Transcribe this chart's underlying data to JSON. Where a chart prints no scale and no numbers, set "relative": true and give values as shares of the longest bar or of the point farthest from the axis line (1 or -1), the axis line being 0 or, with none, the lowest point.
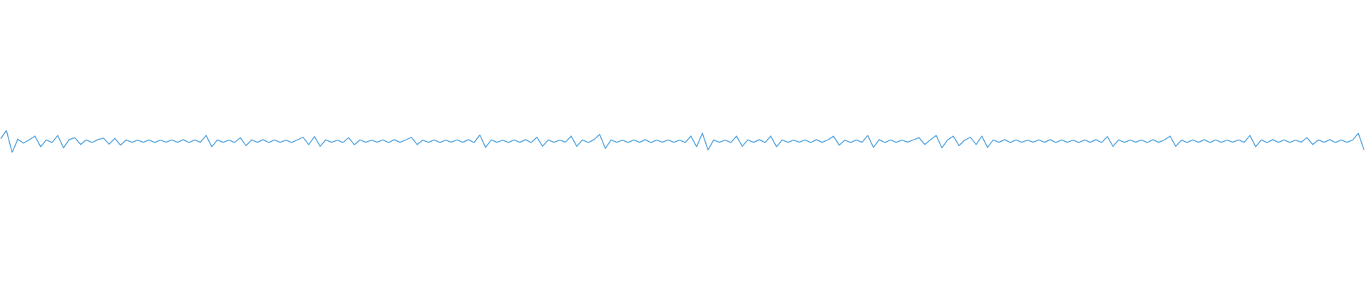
{
  "chart_data": {
    "type": "line",
    "relative": true,
    "categories": [
      null,
      null,
      null,
      null,
      null,
      null,
      null,
      null,
      null,
      null,
      null,
      null,
      null,
      null,
      null,
      null,
      null,
      null,
      null,
      null,
      null,
      null,
      null,
      null,
      null,
      null,
      null,
      null,
      null,
      null,
      null,
      null,
      null,
      null,
      null,
      null,
      null,
      null,
      null,
      null,
      null,
      null,
      null,
      null,
      null,
      null,
      null,
      null,
      null,
      null,
      null,
      null,
      null,
      null,
      null,
      null,
      null,
      null,
      null,
      null,
      null,
      null,
      null,
      null,
      null,
      null,
      null,
      null,
      null,
      null,
      null,
      null,
      null,
      null,
      null,
      null,
      null,
      null,
      null,
      null,
      null,
      null,
      null,
      null,
      null,
      null,
      null,
      null,
      null,
      null,
      null,
      null,
      null,
      null,
      null,
      null,
      null,
      null,
      null,
      null,
      null,
      null,
      null,
      null,
      null,
      null,
      null,
      null,
      null,
      null,
      null,
      null,
      null,
      null,
      null,
      null,
      null,
      null,
      null,
      null,
      null,
      null,
      null,
      null,
      null,
      null,
      null,
      null,
      null,
      null,
      null,
      null,
      null,
      null,
      null,
      null,
      null,
      null,
      null,
      null,
      null,
      null,
      null,
      null,
      null,
      null,
      null,
      null,
      null,
      null,
      null,
      null,
      null,
      null,
      null,
      null,
      null,
      null,
      null,
      null,
      null,
      null,
      null,
      null,
      null,
      null,
      null,
      null,
      null,
      null,
      null,
      null,
      null,
      null,
      null,
      null,
      null,
      null,
      null,
      null,
      null,
      null,
      null,
      null,
      null,
      null,
      null,
      null,
      null,
      null,
      null,
      null,
      null,
      null,
      null,
      null,
      null,
      null,
      null,
      null,
      null,
      null,
      null,
      null,
      null,
      null,
      null,
      null,
      null,
      null,
      null,
      null,
      null,
      null,
      null,
      null,
      null,
      null,
      null,
      null,
      null,
      null,
      null,
      null,
      null,
      null,
      null,
      null,
      null,
      null,
      null,
      null,
      null,
      null,
      null,
      null,
      null,
      null,
      null,
      null
    ],
    "series": [
      {
        "color": "#5aa8e0",
        "values": [
          0.62,
          1.0,
          0.0,
          0.6,
          0.42,
          0.58,
          0.74,
          0.26,
          0.57,
          0.45,
          0.77,
          0.21,
          0.58,
          0.67,
          0.36,
          0.57,
          0.45,
          0.58,
          0.65,
          0.38,
          0.64,
          0.33,
          0.57,
          0.46,
          0.56,
          0.46,
          0.57,
          0.45,
          0.56,
          0.47,
          0.57,
          0.46,
          0.58,
          0.45,
          0.57,
          0.46,
          0.77,
          0.26,
          0.57,
          0.46,
          0.56,
          0.45,
          0.67,
          0.31,
          0.57,
          0.46,
          0.58,
          0.45,
          0.57,
          0.46,
          0.56,
          0.45,
          0.57,
          0.69,
          0.35,
          0.72,
          0.28,
          0.57,
          0.46,
          0.56,
          0.45,
          0.67,
          0.35,
          0.57,
          0.46,
          0.56,
          0.47,
          0.57,
          0.45,
          0.58,
          0.46,
          0.57,
          0.69,
          0.36,
          0.56,
          0.46,
          0.57,
          0.45,
          0.56,
          0.47,
          0.57,
          0.46,
          0.58,
          0.45,
          0.79,
          0.23,
          0.57,
          0.46,
          0.56,
          0.45,
          0.57,
          0.46,
          0.58,
          0.45,
          0.69,
          0.28,
          0.57,
          0.46,
          0.56,
          0.47,
          0.74,
          0.28,
          0.57,
          0.45,
          0.58,
          0.82,
          0.18,
          0.57,
          0.46,
          0.56,
          0.45,
          0.57,
          0.46,
          0.58,
          0.45,
          0.56,
          0.47,
          0.57,
          0.46,
          0.56,
          0.45,
          0.74,
          0.26,
          0.87,
          0.12,
          0.57,
          0.46,
          0.56,
          0.45,
          0.74,
          0.28,
          0.57,
          0.46,
          0.58,
          0.45,
          0.74,
          0.26,
          0.57,
          0.46,
          0.56,
          0.47,
          0.57,
          0.45,
          0.58,
          0.46,
          0.57,
          0.74,
          0.33,
          0.56,
          0.45,
          0.57,
          0.46,
          0.77,
          0.23,
          0.58,
          0.45,
          0.57,
          0.46,
          0.56,
          0.47,
          0.57,
          0.67,
          0.36,
          0.58,
          0.77,
          0.21,
          0.57,
          0.74,
          0.31,
          0.56,
          0.69,
          0.36,
          0.74,
          0.23,
          0.57,
          0.46,
          0.58,
          0.45,
          0.57,
          0.46,
          0.56,
          0.47,
          0.57,
          0.46,
          0.58,
          0.45,
          0.57,
          0.46,
          0.56,
          0.45,
          0.57,
          0.46,
          0.58,
          0.45,
          0.72,
          0.28,
          0.57,
          0.46,
          0.56,
          0.47,
          0.57,
          0.45,
          0.58,
          0.46,
          0.57,
          0.74,
          0.28,
          0.56,
          0.45,
          0.57,
          0.46,
          0.58,
          0.45,
          0.57,
          0.46,
          0.56,
          0.47,
          0.57,
          0.46,
          0.77,
          0.26,
          0.57,
          0.45,
          0.58,
          0.46,
          0.57,
          0.45,
          0.56,
          0.47,
          0.67,
          0.36,
          0.57,
          0.46,
          0.58,
          0.45,
          0.57,
          0.46,
          0.56,
          0.87,
          0.12
        ]
      }
    ]
  }
}
